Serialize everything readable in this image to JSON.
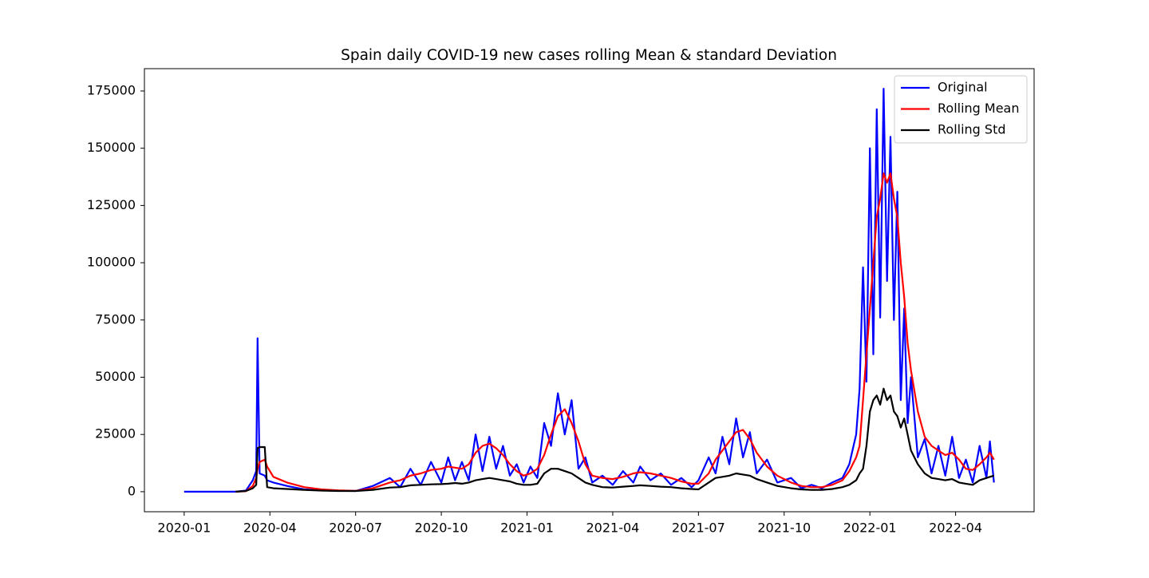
{
  "chart_data": {
    "type": "line",
    "title": "Spain daily COVID-19 new cases rolling Mean & standard Deviation",
    "x": [
      2020.0,
      2020.1,
      2020.15,
      2020.18,
      2020.2,
      2020.21,
      2020.214,
      2020.22,
      2020.235,
      2020.242,
      2020.26,
      2020.3,
      2020.35,
      2020.4,
      2020.45,
      2020.5,
      2020.55,
      2020.6,
      2020.63,
      2020.66,
      2020.69,
      2020.72,
      2020.75,
      2020.77,
      2020.79,
      2020.81,
      2020.83,
      2020.85,
      2020.87,
      2020.89,
      2020.91,
      2020.93,
      2020.95,
      2020.97,
      2020.99,
      2021.01,
      2021.03,
      2021.05,
      2021.07,
      2021.09,
      2021.11,
      2021.13,
      2021.15,
      2021.17,
      2021.19,
      2021.22,
      2021.25,
      2021.28,
      2021.31,
      2021.33,
      2021.36,
      2021.39,
      2021.42,
      2021.45,
      2021.48,
      2021.5,
      2021.53,
      2021.55,
      2021.57,
      2021.59,
      2021.61,
      2021.63,
      2021.65,
      2021.67,
      2021.7,
      2021.73,
      2021.77,
      2021.8,
      2021.83,
      2021.86,
      2021.89,
      2021.92,
      2021.94,
      2021.96,
      2021.97,
      2021.98,
      2021.99,
      2022.0,
      2022.01,
      2022.02,
      2022.03,
      2022.04,
      2022.05,
      2022.06,
      2022.07,
      2022.08,
      2022.09,
      2022.1,
      2022.11,
      2022.12,
      2022.14,
      2022.16,
      2022.18,
      2022.2,
      2022.22,
      2022.24,
      2022.26,
      2022.28,
      2022.3,
      2022.32,
      2022.34,
      2022.35,
      2022.362
    ],
    "series": [
      {
        "name": "Original",
        "color": "#0000ff",
        "values": [
          0,
          0,
          0,
          500,
          5000,
          9000,
          67000,
          8000,
          7000,
          5000,
          4000,
          2500,
          1000,
          600,
          400,
          300,
          2500,
          6000,
          2000,
          10000,
          3000,
          13000,
          4000,
          15000,
          5000,
          13000,
          5000,
          25000,
          9000,
          24000,
          10000,
          20000,
          7000,
          12000,
          4000,
          11000,
          6000,
          30000,
          20000,
          43000,
          25000,
          40000,
          10000,
          15000,
          4000,
          7000,
          3000,
          9000,
          4000,
          11000,
          5000,
          8000,
          3000,
          6000,
          2000,
          5000,
          15000,
          8000,
          24000,
          12000,
          32000,
          15000,
          26000,
          8000,
          14000,
          4000,
          6000,
          1500,
          3000,
          1500,
          4000,
          6000,
          12000,
          25000,
          45000,
          98000,
          48000,
          150000,
          60000,
          167000,
          76000,
          176000,
          92000,
          155000,
          75000,
          131000,
          40000,
          80000,
          30000,
          50000,
          15000,
          23000,
          8000,
          20000,
          7000,
          24000,
          6000,
          14000,
          4000,
          20000,
          6000,
          22000,
          4000
        ]
      },
      {
        "name": "Rolling Mean",
        "color": "#ff0000",
        "values": [
          null,
          null,
          0,
          200,
          2500,
          6000,
          10000,
          13000,
          14000,
          11000,
          6500,
          4000,
          2000,
          1000,
          600,
          400,
          1500,
          4000,
          5000,
          7000,
          8000,
          9500,
          10000,
          11000,
          10500,
          10000,
          12000,
          17000,
          20000,
          21000,
          19000,
          16000,
          12000,
          9000,
          7000,
          8000,
          10000,
          16000,
          25000,
          33000,
          36000,
          30000,
          22000,
          12000,
          7000,
          6000,
          5500,
          6500,
          8000,
          8500,
          8000,
          7000,
          6000,
          4500,
          3500,
          3500,
          8000,
          14000,
          18000,
          22000,
          26000,
          27000,
          23000,
          17000,
          11000,
          7000,
          4000,
          2500,
          2000,
          2000,
          3000,
          5000,
          9000,
          15000,
          20000,
          40000,
          60000,
          80000,
          100000,
          120000,
          128000,
          139000,
          135000,
          139000,
          128000,
          120000,
          100000,
          85000,
          65000,
          53000,
          35000,
          24000,
          20000,
          18000,
          16000,
          17000,
          14000,
          10000,
          9500,
          12000,
          15000,
          17000,
          14000
        ]
      },
      {
        "name": "Rolling Std",
        "color": "#000000",
        "values": [
          null,
          null,
          0,
          300,
          1500,
          3000,
          19000,
          19500,
          19500,
          2000,
          1500,
          1200,
          800,
          500,
          300,
          300,
          800,
          1800,
          2000,
          2800,
          3000,
          3200,
          3300,
          3500,
          3800,
          3500,
          4000,
          5000,
          5500,
          6000,
          5500,
          5000,
          4500,
          3500,
          3000,
          3000,
          3500,
          8000,
          10000,
          10000,
          9000,
          8000,
          6000,
          4000,
          3000,
          2000,
          1800,
          2200,
          2500,
          2800,
          2500,
          2200,
          2000,
          1500,
          1200,
          1000,
          4000,
          6000,
          6500,
          7000,
          8000,
          7500,
          7000,
          5500,
          4000,
          2500,
          1500,
          1000,
          800,
          800,
          1200,
          2000,
          3000,
          5000,
          8000,
          10000,
          20000,
          35000,
          40000,
          42000,
          38000,
          45000,
          40000,
          42000,
          35000,
          33000,
          28000,
          32000,
          25000,
          18000,
          12000,
          8000,
          6000,
          5500,
          5000,
          5500,
          4000,
          3500,
          3000,
          5000,
          6000,
          6500,
          7000
        ]
      }
    ],
    "xlim": [
      2019.884,
      2022.479
    ],
    "xticks": [
      {
        "value": 2020.0,
        "label": "2020-01"
      },
      {
        "value": 2020.25,
        "label": "2020-04"
      },
      {
        "value": 2020.5,
        "label": "2020-07"
      },
      {
        "value": 2020.75,
        "label": "2020-10"
      },
      {
        "value": 2021.0,
        "label": "2021-01"
      },
      {
        "value": 2021.25,
        "label": "2021-04"
      },
      {
        "value": 2021.5,
        "label": "2021-07"
      },
      {
        "value": 2021.75,
        "label": "2021-10"
      },
      {
        "value": 2022.0,
        "label": "2022-01"
      },
      {
        "value": 2022.25,
        "label": "2022-04"
      }
    ],
    "ylim": [
      -8750,
      184750
    ],
    "yticks": [
      0,
      25000,
      50000,
      75000,
      100000,
      125000,
      150000,
      175000
    ],
    "legend": "upper right"
  }
}
